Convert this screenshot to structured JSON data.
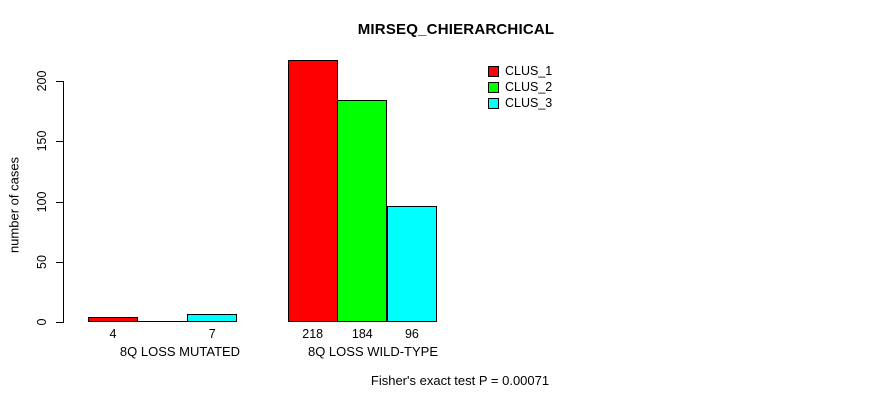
{
  "chart_data": {
    "type": "bar",
    "title": "MIRSEQ_CHIERARCHICAL",
    "ylabel": "number of cases",
    "xlabel": "",
    "ylim": [
      0,
      220
    ],
    "yticks": [
      0,
      50,
      100,
      150,
      200
    ],
    "grid": false,
    "legend_position": "top-right-inside",
    "categories": [
      "8Q LOSS MUTATED",
      "8Q LOSS WILD-TYPE"
    ],
    "series": [
      {
        "name": "CLUS_1",
        "color": "#ff0000",
        "values": [
          4,
          218
        ]
      },
      {
        "name": "CLUS_2",
        "color": "#00ff00",
        "values": [
          0,
          184
        ]
      },
      {
        "name": "CLUS_3",
        "color": "#00ffff",
        "values": [
          7,
          96
        ]
      }
    ],
    "bar_value_labels": [
      [
        "4",
        "",
        "7"
      ],
      [
        "218",
        "184",
        "96"
      ]
    ],
    "annotation": "Fisher's exact test P = 0.00071",
    "colors": {
      "bar_border": "#000000",
      "background": "#ffffff"
    }
  }
}
